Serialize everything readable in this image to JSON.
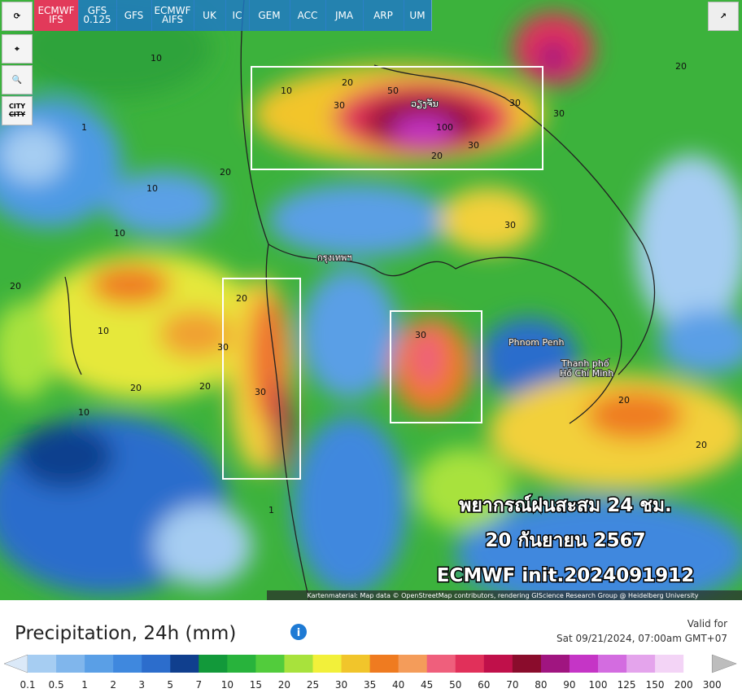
{
  "toolbar": {
    "models": [
      [
        "ECMWF",
        "IFS"
      ],
      [
        "GFS",
        "0.125"
      ],
      [
        "GFS"
      ],
      [
        "ECMWF",
        "AIFS"
      ],
      [
        "UK"
      ],
      [
        "IC"
      ],
      [
        "GEM"
      ],
      [
        "ACC"
      ],
      [
        "JMA"
      ],
      [
        "ARP"
      ],
      [
        "UM"
      ]
    ],
    "active_model": 0,
    "city_toggle": [
      "CITY",
      "CITY"
    ]
  },
  "map": {
    "places": [
      "ວຽງຈັນ",
      "กรุงเทพฯ",
      "Phnom Penh",
      "Thanh phố",
      "Hồ Chí Minh"
    ],
    "contour_labels": [
      "10",
      "20",
      "30",
      "50",
      "100",
      "1",
      "10",
      "20",
      "30",
      "20",
      "30",
      "10",
      "20",
      "30",
      "30",
      "20",
      "10",
      "20",
      "30",
      "20",
      "10",
      "1",
      "20",
      "30",
      "20",
      "10",
      "30",
      "20"
    ],
    "overlay": [
      "พยากรณ์ฝนสะสม 24 ชม.",
      "20 กันยายน 2567",
      "ECMWF init.2024091912"
    ],
    "attribution": "Kartenmaterial: Map data © OpenStreetMap contributors, rendering GIScience Research Group @ Heidelberg University"
  },
  "legend": {
    "title": "Precipitation, 24h (mm)",
    "valid_label": "Valid for",
    "valid_time": "Sat 09/21/2024, 07:00am GMT+07",
    "labels": [
      0.1,
      0.5,
      1,
      2,
      3,
      5,
      7,
      10,
      15,
      20,
      25,
      30,
      35,
      40,
      45,
      50,
      60,
      70,
      80,
      90,
      100,
      125,
      150,
      200,
      300
    ],
    "colors": [
      "#a6cdf2",
      "#80b6ec",
      "#5a9fe6",
      "#3f88de",
      "#2c6dcc",
      "#103f8e",
      "#12993a",
      "#28b33c",
      "#52cc3c",
      "#a8e23c",
      "#f2f03a",
      "#f1c52b",
      "#ef7b20",
      "#f49c5a",
      "#ef5f7c",
      "#e1305a",
      "#c0104a",
      "#8a0c2c",
      "#a01580",
      "#c535c6",
      "#d36ce0",
      "#e4a4ec",
      "#f3d4f6",
      "#ffffff"
    ]
  }
}
